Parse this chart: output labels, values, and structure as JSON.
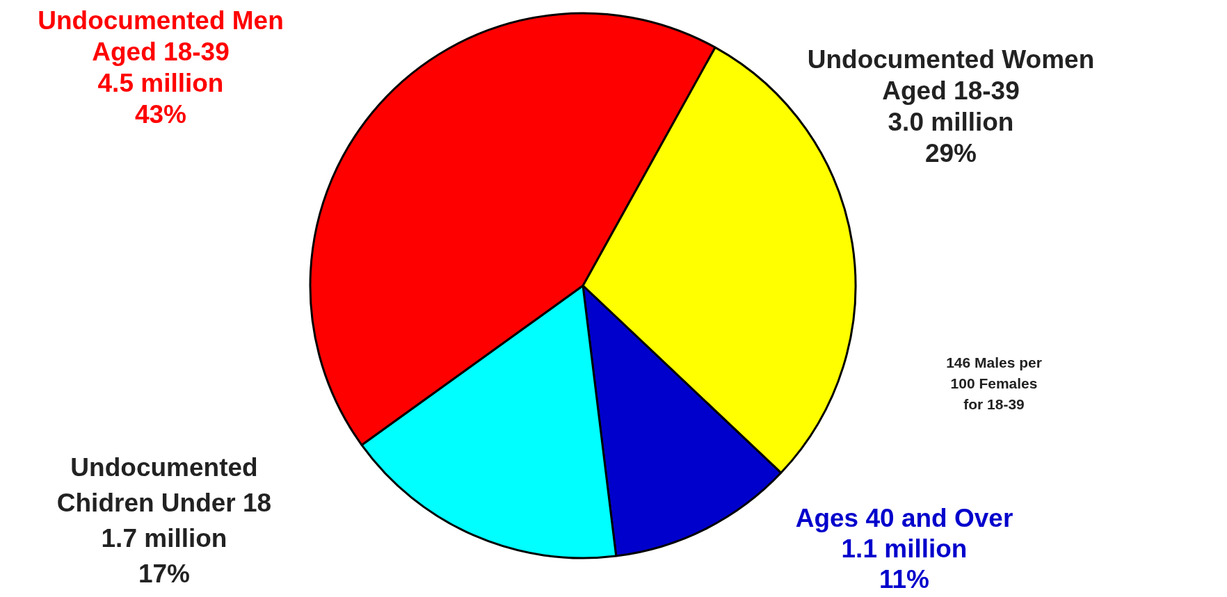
{
  "chart_data": {
    "type": "pie",
    "categories": [
      "Undocumented Women\nAged 18-39",
      "Ages 40 and Over",
      "Undocumented\nChidren Under 18",
      "Undocumented Men\nAged 18-39"
    ],
    "values": [
      29,
      11,
      17,
      43
    ],
    "value_labels": [
      "3.0 million\n29%",
      "1.1 million\n11%",
      "1.7 million\n17%",
      "4.5 million\n43%"
    ],
    "colors": [
      "#ffff00",
      "#0000cc",
      "#00ffff",
      "#ff0000"
    ],
    "annotations": [
      "146 Males per\n100 Females\nfor 18-39"
    ],
    "legend": false
  }
}
